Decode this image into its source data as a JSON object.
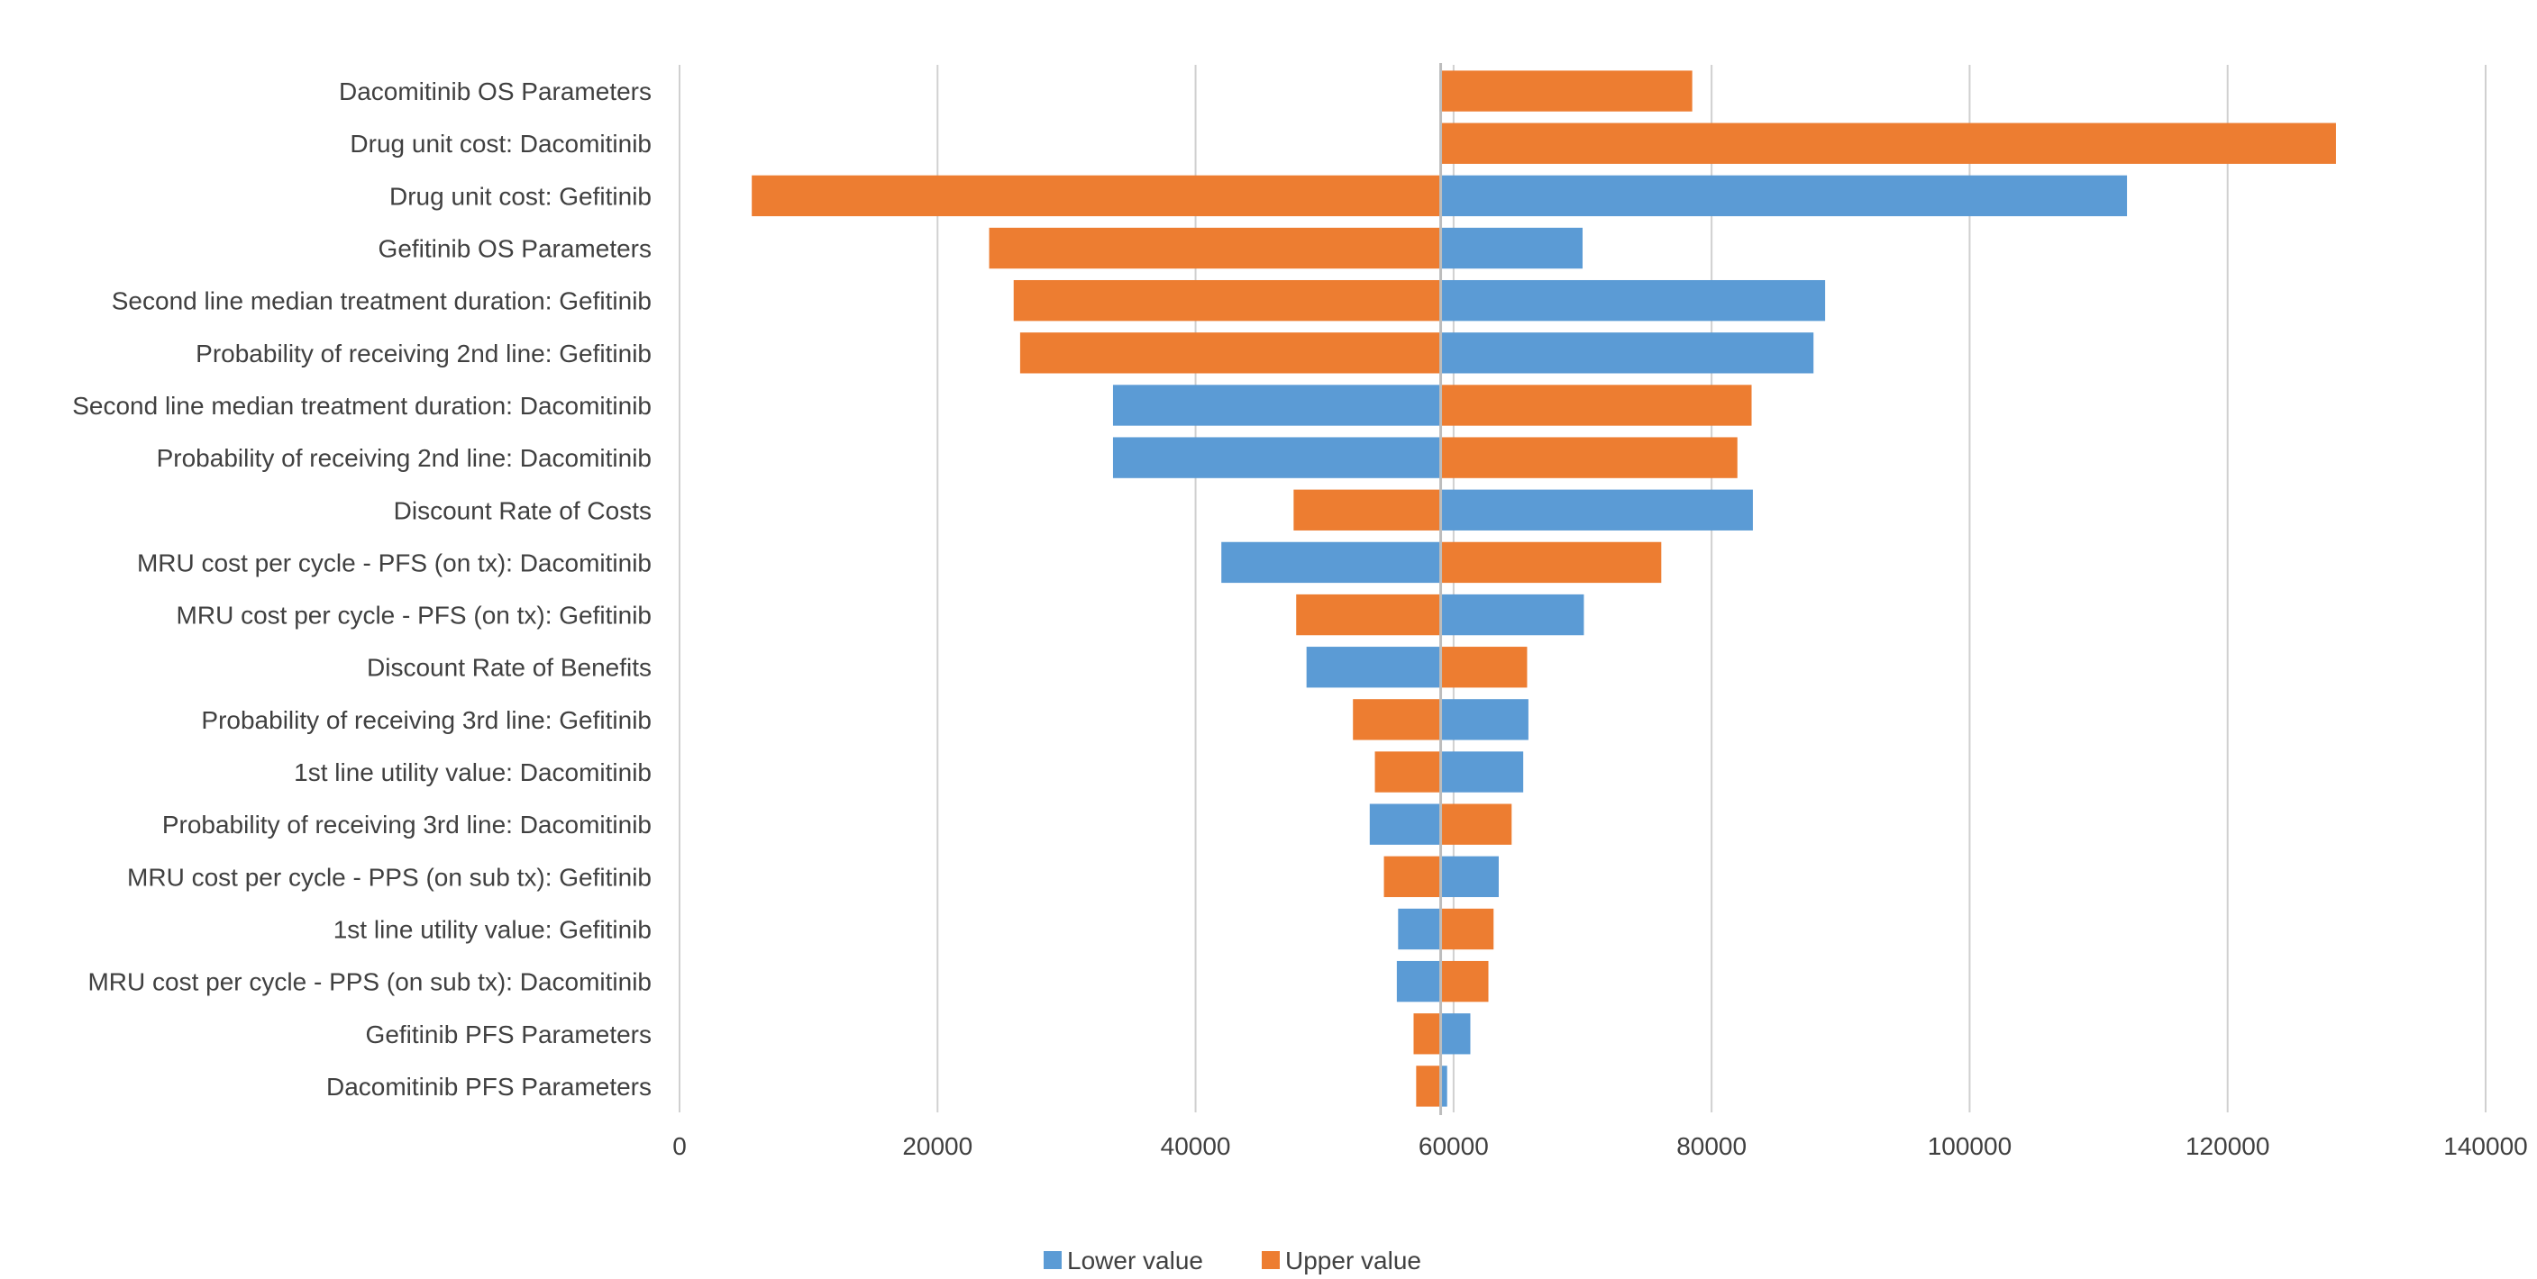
{
  "colors": {
    "lower": "#5b9bd5",
    "upper": "#ed7d31"
  },
  "chart_data": {
    "type": "bar",
    "orientation": "horizontal",
    "subtype": "tornado",
    "title": "",
    "xlabel": "",
    "ylabel": "",
    "base_value": 59000,
    "xlim": [
      0,
      140000
    ],
    "xticks": [
      0,
      20000,
      40000,
      60000,
      80000,
      100000,
      120000,
      140000
    ],
    "grid": true,
    "legend_position": "bottom",
    "legend": [
      {
        "key": "lower",
        "label": "Lower value"
      },
      {
        "key": "upper",
        "label": "Upper value"
      }
    ],
    "categories": [
      "Dacomitinib OS Parameters",
      "Drug unit cost: Dacomitinib",
      "Drug unit cost: Gefitinib",
      "Gefitinib OS Parameters",
      "Second line median treatment duration: Gefitinib",
      "Probability of receiving 2nd line: Gefitinib",
      "Second line median treatment duration: Dacomitinib",
      "Probability of receiving 2nd line: Dacomitinib",
      "Discount Rate of Costs",
      "MRU cost per cycle - PFS (on tx): Dacomitinib",
      "MRU cost per cycle - PFS (on tx): Gefitinib",
      "Discount Rate of Benefits",
      "Probability of receiving 3rd line: Gefitinib",
      "1st line utility value: Dacomitinib",
      "Probability of receiving 3rd line: Dacomitinib",
      "MRU cost per cycle - PPS (on sub tx): Gefitinib",
      "1st line utility value: Gefitinib",
      "MRU cost per cycle - PPS (on sub tx): Dacomitinib",
      "Gefitinib PFS Parameters",
      "Dacomitinib PFS Parameters"
    ],
    "series": [
      {
        "name": "Lower value",
        "key": "lower",
        "values": [
          58900,
          59000,
          112200,
          70000,
          88800,
          87900,
          33600,
          33600,
          83200,
          42000,
          70100,
          48600,
          65800,
          65400,
          53500,
          63500,
          55700,
          55600,
          61300,
          59500
        ]
      },
      {
        "name": "Upper value",
        "key": "upper",
        "values": [
          78500,
          128400,
          5600,
          24000,
          25900,
          26400,
          83100,
          82000,
          47600,
          76100,
          47800,
          65700,
          52200,
          53900,
          64500,
          54600,
          63100,
          62700,
          56900,
          57100
        ]
      }
    ]
  }
}
